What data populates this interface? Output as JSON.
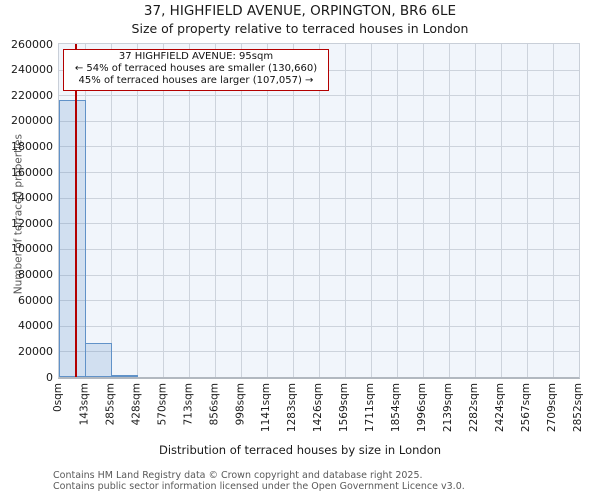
{
  "page": {
    "title": "37, HIGHFIELD AVENUE, ORPINGTON, BR6 6LE",
    "subtitle": "Size of property relative to terraced houses in London"
  },
  "footer": {
    "line1": "Contains HM Land Registry data © Crown copyright and database right 2025.",
    "line2": "Contains public sector information licensed under the Open Government Licence v3.0."
  },
  "chart_data": {
    "type": "bar",
    "title": "37, HIGHFIELD AVENUE, ORPINGTON, BR6 6LE",
    "subtitle": "Size of property relative to terraced houses in London",
    "xlabel": "Distribution of terraced houses by size in London",
    "ylabel": "Number of terraced properties",
    "grid": true,
    "ylim": [
      0,
      260000
    ],
    "ytick_step": 20000,
    "y_tick_labels": [
      "0",
      "20000",
      "40000",
      "60000",
      "80000",
      "100000",
      "120000",
      "140000",
      "160000",
      "180000",
      "200000",
      "220000",
      "240000",
      "260000"
    ],
    "x_tick_labels": [
      "0sqm",
      "143sqm",
      "285sqm",
      "428sqm",
      "570sqm",
      "713sqm",
      "856sqm",
      "998sqm",
      "1141sqm",
      "1283sqm",
      "1426sqm",
      "1569sqm",
      "1711sqm",
      "1854sqm",
      "1996sqm",
      "2139sqm",
      "2282sqm",
      "2424sqm",
      "2567sqm",
      "2709sqm",
      "2852sqm"
    ],
    "bin_edges_sqm": [
      0,
      143,
      285,
      428,
      570,
      713,
      856,
      998,
      1141,
      1283,
      1426,
      1569,
      1711,
      1854,
      1996,
      2139,
      2282,
      2424,
      2567,
      2709,
      2852
    ],
    "values": [
      216000,
      26500,
      1000,
      0,
      0,
      0,
      0,
      0,
      0,
      0,
      0,
      0,
      0,
      0,
      0,
      0,
      0,
      0,
      0,
      0
    ],
    "marker": {
      "label": "37 HIGHFIELD AVENUE",
      "value_sqm": 95,
      "color": "#b30000"
    },
    "annotation": {
      "line1": "37 HIGHFIELD AVENUE: 95sqm",
      "line2": "← 54% of terraced houses are smaller (130,660)",
      "line3": "45% of terraced houses are larger (107,057) →",
      "smaller_pct": "54",
      "smaller_count": "130,660",
      "larger_pct": "45",
      "larger_count": "107,057"
    },
    "colors": {
      "bar_fill": "#d8e2f3",
      "bar_edge": "#6192c8",
      "marker_line": "#b30000",
      "plot_bg": "#f1f5fb",
      "grid": "#cdd3dc"
    }
  }
}
